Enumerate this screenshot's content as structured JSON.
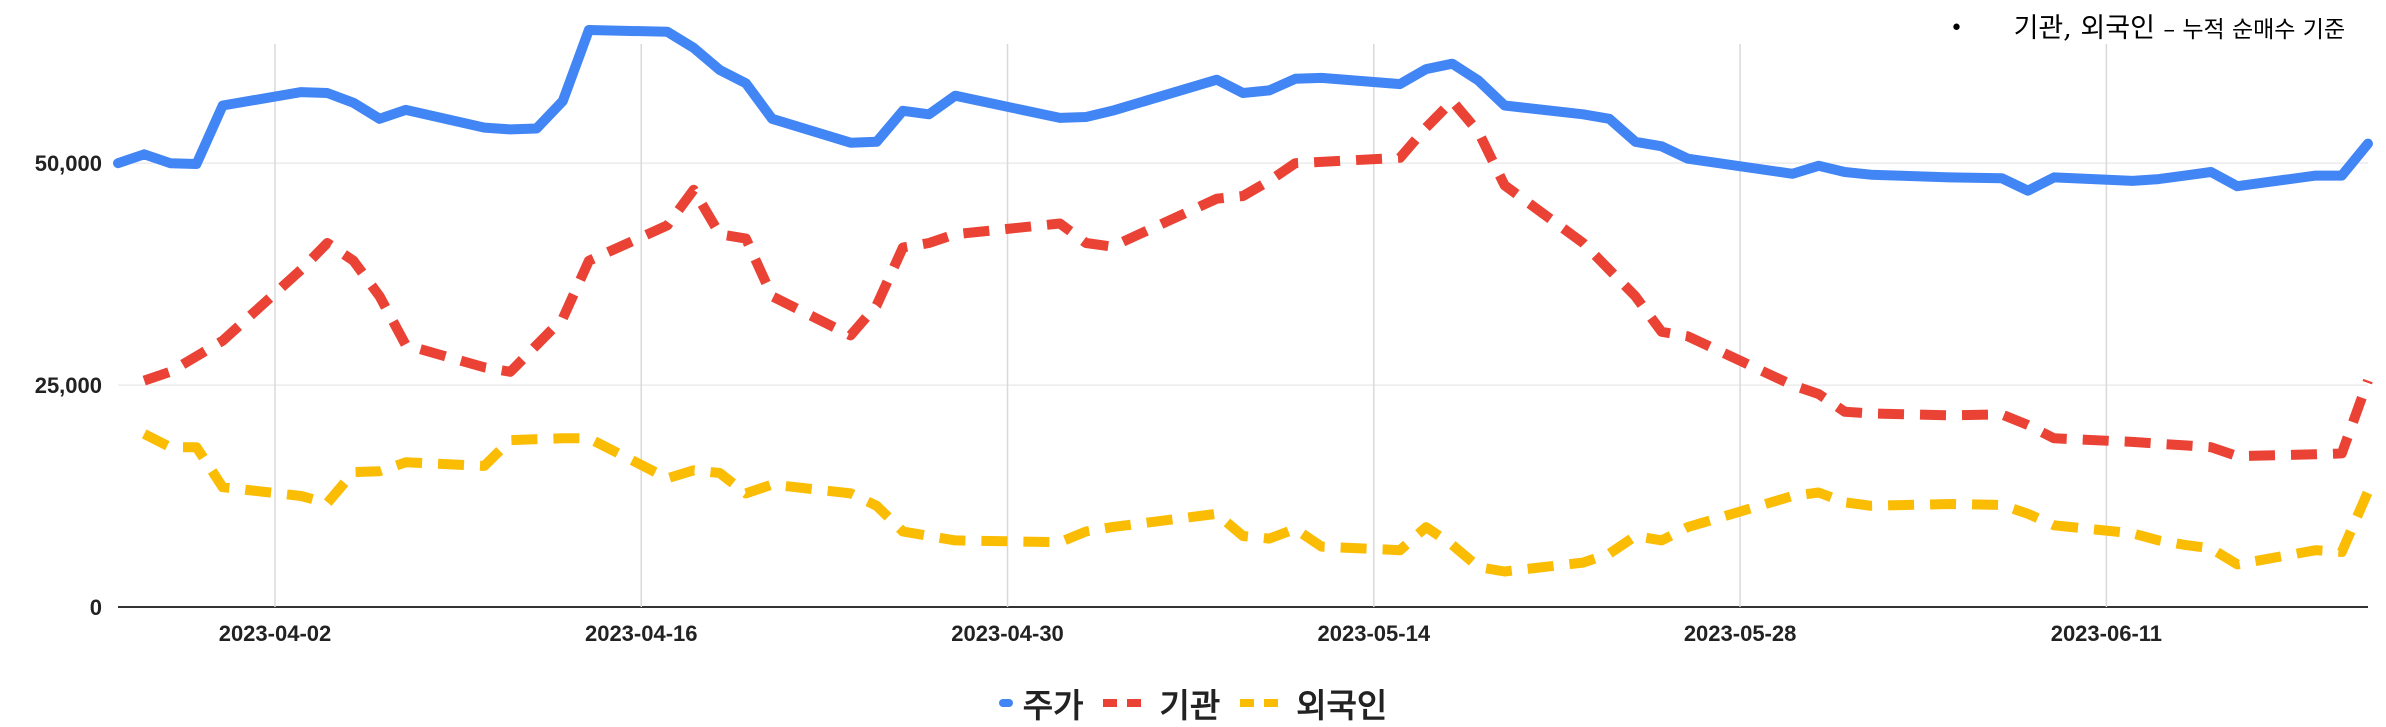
{
  "note": {
    "bullet": "•",
    "label": "기관, 외국인",
    "desc": "– 누적 순매수 기준"
  },
  "chart_data": {
    "type": "line",
    "x_start": "2023-03-27",
    "x_end": "2023-06-21",
    "xticks": [
      "2023-04-02",
      "2023-04-16",
      "2023-04-30",
      "2023-05-14",
      "2023-05-28",
      "2023-06-11"
    ],
    "yticks": [
      0,
      25000,
      50000
    ],
    "ytick_labels": [
      "0",
      "25,000",
      "50,000"
    ],
    "ylim": [
      0,
      65000
    ],
    "grid": {
      "x": true,
      "y": true
    },
    "legend_position": "bottom",
    "series": [
      {
        "name": "주가",
        "color": "#4285F4",
        "dash": "solid",
        "x": [
          "2023-03-27",
          "2023-03-28",
          "2023-03-29",
          "2023-03-30",
          "2023-03-31",
          "2023-04-03",
          "2023-04-04",
          "2023-04-05",
          "2023-04-06",
          "2023-04-07",
          "2023-04-10",
          "2023-04-11",
          "2023-04-12",
          "2023-04-13",
          "2023-04-14",
          "2023-04-17",
          "2023-04-18",
          "2023-04-19",
          "2023-04-20",
          "2023-04-21",
          "2023-04-24",
          "2023-04-25",
          "2023-04-26",
          "2023-04-27",
          "2023-04-28",
          "2023-05-02",
          "2023-05-03",
          "2023-05-04",
          "2023-05-08",
          "2023-05-09",
          "2023-05-10",
          "2023-05-11",
          "2023-05-12",
          "2023-05-15",
          "2023-05-16",
          "2023-05-17",
          "2023-05-18",
          "2023-05-19",
          "2023-05-22",
          "2023-05-23",
          "2023-05-24",
          "2023-05-25",
          "2023-05-26",
          "2023-05-30",
          "2023-05-31",
          "2023-06-01",
          "2023-06-02",
          "2023-06-05",
          "2023-06-07",
          "2023-06-08",
          "2023-06-09",
          "2023-06-12",
          "2023-06-13",
          "2023-06-14",
          "2023-06-15",
          "2023-06-16",
          "2023-06-19",
          "2023-06-20",
          "2023-06-21"
        ],
        "values": [
          50000,
          51000,
          50000,
          49900,
          56500,
          58000,
          57900,
          56800,
          55000,
          56000,
          54000,
          53800,
          53900,
          57000,
          65000,
          64800,
          63000,
          60500,
          59000,
          55000,
          52300,
          52400,
          55900,
          55500,
          57600,
          55100,
          55200,
          55900,
          59400,
          57900,
          58200,
          59500,
          59600,
          58900,
          60600,
          61200,
          59300,
          56500,
          55500,
          55000,
          52400,
          51900,
          50500,
          48800,
          49700,
          49000,
          48700,
          48400,
          48300,
          46900,
          48400,
          48000,
          48200,
          48600,
          49000,
          47400,
          48600,
          48600,
          52200
        ]
      },
      {
        "name": "기관",
        "color": "#EA4335",
        "dash": "dashed",
        "x": [
          "2023-03-28",
          "2023-03-29",
          "2023-03-31",
          "2023-04-03",
          "2023-04-04",
          "2023-04-05",
          "2023-04-06",
          "2023-04-07",
          "2023-04-10",
          "2023-04-11",
          "2023-04-13",
          "2023-04-14",
          "2023-04-17",
          "2023-04-18",
          "2023-04-19",
          "2023-04-20",
          "2023-04-21",
          "2023-04-24",
          "2023-04-25",
          "2023-04-26",
          "2023-04-27",
          "2023-04-28",
          "2023-05-02",
          "2023-05-03",
          "2023-05-04",
          "2023-05-08",
          "2023-05-09",
          "2023-05-10",
          "2023-05-11",
          "2023-05-15",
          "2023-05-16",
          "2023-05-17",
          "2023-05-18",
          "2023-05-19",
          "2023-05-22",
          "2023-05-23",
          "2023-05-24",
          "2023-05-25",
          "2023-05-26",
          "2023-05-30",
          "2023-05-31",
          "2023-06-01",
          "2023-06-02",
          "2023-06-05",
          "2023-06-07",
          "2023-06-08",
          "2023-06-09",
          "2023-06-12",
          "2023-06-13",
          "2023-06-14",
          "2023-06-15",
          "2023-06-16",
          "2023-06-19",
          "2023-06-20",
          "2023-06-21"
        ],
        "values": [
          25500,
          26500,
          30000,
          38000,
          41000,
          39000,
          35000,
          29500,
          27000,
          26500,
          32500,
          39000,
          43000,
          47000,
          42000,
          41500,
          35000,
          30600,
          34000,
          40500,
          41000,
          42000,
          43200,
          41000,
          40600,
          46000,
          46300,
          48000,
          50000,
          50600,
          54000,
          57000,
          53500,
          47500,
          41000,
          38000,
          35000,
          31000,
          30500,
          25000,
          24000,
          22000,
          21800,
          21600,
          21700,
          20500,
          19000,
          18600,
          18400,
          18200,
          18000,
          17000,
          17200,
          17300,
          25500
        ]
      },
      {
        "name": "외국인",
        "color": "#FBBC04",
        "dash": "dashed",
        "x": [
          "2023-03-28",
          "2023-03-29",
          "2023-03-30",
          "2023-03-31",
          "2023-04-03",
          "2023-04-04",
          "2023-04-05",
          "2023-04-06",
          "2023-04-07",
          "2023-04-10",
          "2023-04-11",
          "2023-04-13",
          "2023-04-14",
          "2023-04-17",
          "2023-04-18",
          "2023-04-19",
          "2023-04-20",
          "2023-04-21",
          "2023-04-24",
          "2023-04-25",
          "2023-04-26",
          "2023-04-27",
          "2023-04-28",
          "2023-05-02",
          "2023-05-03",
          "2023-05-04",
          "2023-05-08",
          "2023-05-09",
          "2023-05-10",
          "2023-05-11",
          "2023-05-12",
          "2023-05-15",
          "2023-05-16",
          "2023-05-17",
          "2023-05-18",
          "2023-05-19",
          "2023-05-22",
          "2023-05-23",
          "2023-05-24",
          "2023-05-25",
          "2023-05-26",
          "2023-05-30",
          "2023-05-31",
          "2023-06-01",
          "2023-06-02",
          "2023-06-05",
          "2023-06-07",
          "2023-06-08",
          "2023-06-09",
          "2023-06-12",
          "2023-06-13",
          "2023-06-14",
          "2023-06-15",
          "2023-06-16",
          "2023-06-19",
          "2023-06-20",
          "2023-06-21"
        ],
        "values": [
          19500,
          18000,
          18000,
          13500,
          12500,
          11700,
          15200,
          15300,
          16300,
          15900,
          18800,
          19000,
          19000,
          14500,
          15400,
          15100,
          12800,
          13800,
          12800,
          11400,
          8500,
          8000,
          7500,
          7300,
          8500,
          9000,
          10500,
          8000,
          7700,
          8800,
          6800,
          6400,
          9000,
          7000,
          4500,
          4000,
          5000,
          6000,
          8000,
          7500,
          9000,
          12500,
          12900,
          11800,
          11400,
          11600,
          11500,
          10500,
          9200,
          8300,
          7500,
          7000,
          6600,
          4800,
          6400,
          6200,
          13000
        ]
      }
    ]
  }
}
